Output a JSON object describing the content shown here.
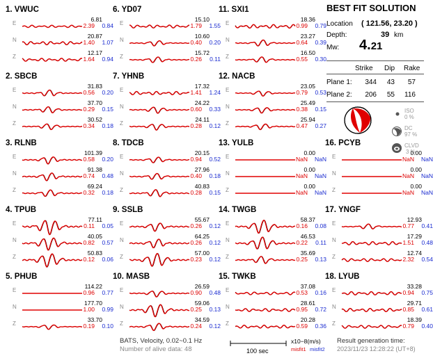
{
  "stations": [
    {
      "idx": "1.",
      "name": "VWUC",
      "rows": [
        {
          "comp": "E",
          "amp": "6.81",
          "m1": "2.39",
          "m2": "0.84",
          "type": "noise",
          "scale": 0.35
        },
        {
          "comp": "N",
          "amp": "20.87",
          "m1": "1.40",
          "m2": "1.07",
          "type": "noise",
          "scale": 0.5
        },
        {
          "comp": "Z",
          "amp": "12.17",
          "m1": "1.64",
          "m2": "0.94",
          "type": "noise",
          "scale": 0.45
        }
      ]
    },
    {
      "idx": "6.",
      "name": "YD07",
      "rows": [
        {
          "comp": "E",
          "amp": "15.10",
          "m1": "1.79",
          "m2": "1.55",
          "type": "noise",
          "scale": 0.45
        },
        {
          "comp": "N",
          "amp": "10.60",
          "m1": "0.40",
          "m2": "0.20",
          "type": "pulse",
          "scale": 0.5
        },
        {
          "comp": "Z",
          "amp": "15.72",
          "m1": "0.26",
          "m2": "0.11",
          "type": "pulse",
          "scale": 0.55
        }
      ]
    },
    {
      "idx": "11.",
      "name": "SXI1",
      "rows": [
        {
          "comp": "E",
          "amp": "18.36",
          "m1": "0.99",
          "m2": "0.79",
          "type": "noise",
          "scale": 0.55
        },
        {
          "comp": "N",
          "amp": "23.27",
          "m1": "0.64",
          "m2": "0.39",
          "type": "pulse",
          "scale": 0.6
        },
        {
          "comp": "Z",
          "amp": "16.50",
          "m1": "0.55",
          "m2": "0.30",
          "type": "pulse",
          "scale": 0.55
        }
      ]
    },
    {
      "idx": "2.",
      "name": "SBCB",
      "rows": [
        {
          "comp": "E",
          "amp": "31.83",
          "m1": "0.56",
          "m2": "0.20",
          "type": "pulse",
          "scale": 0.6
        },
        {
          "comp": "N",
          "amp": "37.70",
          "m1": "0.29",
          "m2": "0.15",
          "type": "pulse",
          "scale": 0.6
        },
        {
          "comp": "Z",
          "amp": "30.52",
          "m1": "0.34",
          "m2": "0.18",
          "type": "pulse",
          "scale": 0.55
        }
      ]
    },
    {
      "idx": "7.",
      "name": "YHNB",
      "rows": [
        {
          "comp": "E",
          "amp": "17.32",
          "m1": "1.41",
          "m2": "1.24",
          "type": "noise",
          "scale": 0.5
        },
        {
          "comp": "N",
          "amp": "24.22",
          "m1": "0.60",
          "m2": "0.33",
          "type": "pulse",
          "scale": 0.6
        },
        {
          "comp": "Z",
          "amp": "24.11",
          "m1": "0.28",
          "m2": "0.12",
          "type": "pulse",
          "scale": 0.6
        }
      ]
    },
    {
      "idx": "12.",
      "name": "NACB",
      "rows": [
        {
          "comp": "E",
          "amp": "23.05",
          "m1": "0.79",
          "m2": "0.53",
          "type": "pulse",
          "scale": 0.5
        },
        {
          "comp": "N",
          "amp": "25.49",
          "m1": "0.38",
          "m2": "0.15",
          "type": "pulse",
          "scale": 0.55
        },
        {
          "comp": "Z",
          "amp": "25.94",
          "m1": "0.47",
          "m2": "0.27",
          "type": "pulse",
          "scale": 0.55
        }
      ]
    },
    {
      "idx": "3.",
      "name": "RLNB",
      "rows": [
        {
          "comp": "E",
          "amp": "101.39",
          "m1": "0.58",
          "m2": "0.20",
          "type": "pulse",
          "scale": 0.7
        },
        {
          "comp": "N",
          "amp": "91.38",
          "m1": "0.74",
          "m2": "0.48",
          "type": "pulse",
          "scale": 0.75
        },
        {
          "comp": "Z",
          "amp": "69.24",
          "m1": "0.32",
          "m2": "0.18",
          "type": "pulse",
          "scale": 0.65
        }
      ]
    },
    {
      "idx": "8.",
      "name": "TDCB",
      "rows": [
        {
          "comp": "E",
          "amp": "20.15",
          "m1": "0.94",
          "m2": "0.52",
          "type": "pulse",
          "scale": 0.55
        },
        {
          "comp": "N",
          "amp": "27.96",
          "m1": "0.40",
          "m2": "0.18",
          "type": "pulse",
          "scale": 0.6
        },
        {
          "comp": "Z",
          "amp": "40.83",
          "m1": "0.28",
          "m2": "0.15",
          "type": "pulse",
          "scale": 0.7
        }
      ]
    },
    {
      "idx": "13.",
      "name": "YULB",
      "rows": [
        {
          "comp": "E",
          "amp": "0.00",
          "m1": "NaN",
          "m2": "NaN",
          "type": "flat",
          "scale": 0
        },
        {
          "comp": "N",
          "amp": "0.00",
          "m1": "NaN",
          "m2": "NaN",
          "type": "flat",
          "scale": 0
        },
        {
          "comp": "Z",
          "amp": "0.00",
          "m1": "NaN",
          "m2": "NaN",
          "type": "flat",
          "scale": 0
        }
      ]
    },
    {
      "idx": "16.",
      "name": "PCYB",
      "rows": [
        {
          "comp": "E",
          "amp": "0.00",
          "m1": "NaN",
          "m2": "NaN",
          "type": "flat",
          "scale": 0
        },
        {
          "comp": "N",
          "amp": "0.00",
          "m1": "NaN",
          "m2": "NaN",
          "type": "flat",
          "scale": 0
        },
        {
          "comp": "Z",
          "amp": "0.00",
          "m1": "NaN",
          "m2": "NaN",
          "type": "flat",
          "scale": 0
        }
      ]
    },
    {
      "idx": "4.",
      "name": "TPUB",
      "rows": [
        {
          "comp": "E",
          "amp": "77.11",
          "m1": "0.11",
          "m2": "0.05",
          "type": "big",
          "scale": 1.0
        },
        {
          "comp": "N",
          "amp": "40.05",
          "m1": "0.82",
          "m2": "0.57",
          "type": "big",
          "scale": 0.85
        },
        {
          "comp": "Z",
          "amp": "50.83",
          "m1": "0.12",
          "m2": "0.06",
          "type": "big",
          "scale": 0.9
        }
      ]
    },
    {
      "idx": "9.",
      "name": "SSLB",
      "rows": [
        {
          "comp": "E",
          "amp": "55.67",
          "m1": "0.26",
          "m2": "0.12",
          "type": "pulse",
          "scale": 0.8
        },
        {
          "comp": "N",
          "amp": "64.25",
          "m1": "0.26",
          "m2": "0.12",
          "type": "pulse",
          "scale": 0.85
        },
        {
          "comp": "Z",
          "amp": "57.00",
          "m1": "0.23",
          "m2": "0.12",
          "type": "big",
          "scale": 0.9
        }
      ]
    },
    {
      "idx": "14.",
      "name": "TWGB",
      "rows": [
        {
          "comp": "E",
          "amp": "58.37",
          "m1": "0.16",
          "m2": "0.08",
          "type": "big",
          "scale": 0.9
        },
        {
          "comp": "N",
          "amp": "46.53",
          "m1": "0.22",
          "m2": "0.11",
          "type": "big",
          "scale": 0.85
        },
        {
          "comp": "Z",
          "amp": "35.69",
          "m1": "0.25",
          "m2": "0.13",
          "type": "pulse",
          "scale": 0.7
        }
      ]
    },
    {
      "idx": "17.",
      "name": "YNGF",
      "rows": [
        {
          "comp": "E",
          "amp": "12.93",
          "m1": "0.77",
          "m2": "0.41",
          "type": "pulse",
          "scale": 0.5
        },
        {
          "comp": "N",
          "amp": "17.29",
          "m1": "1.51",
          "m2": "0.48",
          "type": "noise",
          "scale": 0.5
        },
        {
          "comp": "Z",
          "amp": "12.74",
          "m1": "2.32",
          "m2": "0.54",
          "type": "noise",
          "scale": 0.45
        }
      ]
    },
    {
      "idx": "5.",
      "name": "PHUB",
      "rows": [
        {
          "comp": "E",
          "amp": "114.22",
          "m1": "0.96",
          "m2": "0.77",
          "type": "flat",
          "scale": 0.05
        },
        {
          "comp": "N",
          "amp": "177.70",
          "m1": "1.00",
          "m2": "0.99",
          "type": "flat",
          "scale": 0.05
        },
        {
          "comp": "Z",
          "amp": "33.70",
          "m1": "0.19",
          "m2": "0.10",
          "type": "pulse",
          "scale": 0.45
        }
      ]
    },
    {
      "idx": "10.",
      "name": "MASB",
      "rows": [
        {
          "comp": "E",
          "amp": "26.59",
          "m1": "0.90",
          "m2": "0.48",
          "type": "pulse",
          "scale": 0.6
        },
        {
          "comp": "N",
          "amp": "59.06",
          "m1": "0.25",
          "m2": "0.13",
          "type": "big",
          "scale": 0.85
        },
        {
          "comp": "Z",
          "amp": "34.59",
          "m1": "0.24",
          "m2": "0.12",
          "type": "pulse",
          "scale": 0.7
        }
      ]
    },
    {
      "idx": "15.",
      "name": "TWKB",
      "rows": [
        {
          "comp": "E",
          "amp": "37.08",
          "m1": "0.53",
          "m2": "0.16",
          "type": "noise",
          "scale": 0.4
        },
        {
          "comp": "N",
          "amp": "28.61",
          "m1": "0.95",
          "m2": "0.72",
          "type": "noise",
          "scale": 0.45
        },
        {
          "comp": "Z",
          "amp": "20.28",
          "m1": "0.59",
          "m2": "0.36",
          "type": "noise",
          "scale": 0.45
        }
      ]
    },
    {
      "idx": "18.",
      "name": "LYUB",
      "rows": [
        {
          "comp": "E",
          "amp": "33.28",
          "m1": "0.94",
          "m2": "0.75",
          "type": "noise",
          "scale": 0.5
        },
        {
          "comp": "N",
          "amp": "29.71",
          "m1": "0.85",
          "m2": "0.61",
          "type": "noise",
          "scale": 0.5
        },
        {
          "comp": "Z",
          "amp": "18.39",
          "m1": "0.79",
          "m2": "0.40",
          "type": "noise",
          "scale": 0.45
        }
      ]
    }
  ],
  "solution": {
    "title": "BEST FIT SOLUTION",
    "location_label": "Location",
    "location_value": "( 121.56, 23.20 )",
    "depth_label": "Depth:",
    "depth_value": "39",
    "depth_unit": "km",
    "mw_label": "Mw:",
    "mw_value_int": "4.",
    "mw_value_dec": "21",
    "headers": {
      "strike": "Strike",
      "dip": "Dip",
      "rake": "Rake"
    },
    "plane1": {
      "label": "Plane 1:",
      "strike": "344",
      "dip": "43",
      "rake": "57"
    },
    "plane2": {
      "label": "Plane 2:",
      "strike": "206",
      "dip": "55",
      "rake": "116"
    },
    "iso": {
      "label": "ISO",
      "value": "0 %"
    },
    "dc": {
      "label": "DC",
      "value": "97 %"
    },
    "clvd": {
      "label": "CLVD",
      "value": "3 %"
    }
  },
  "footer": {
    "bats_line": "BATS, Velocity, 0.02~0.1 Hz",
    "alive_line": "Number of alive data: 48",
    "scale_label": "100 sec",
    "unit_label": "x10−8(m/s)",
    "misfit1": "misfit1",
    "misfit2": "misfit2",
    "result_label": "Result generation time:",
    "result_time": "2023/11/23 12:28:22 (UT+8)"
  },
  "colors": {
    "obs": "#000000",
    "syn": "#e00000",
    "misfit1": "#d00000",
    "misfit2": "#1a2bd0",
    "grey": "#999999"
  }
}
